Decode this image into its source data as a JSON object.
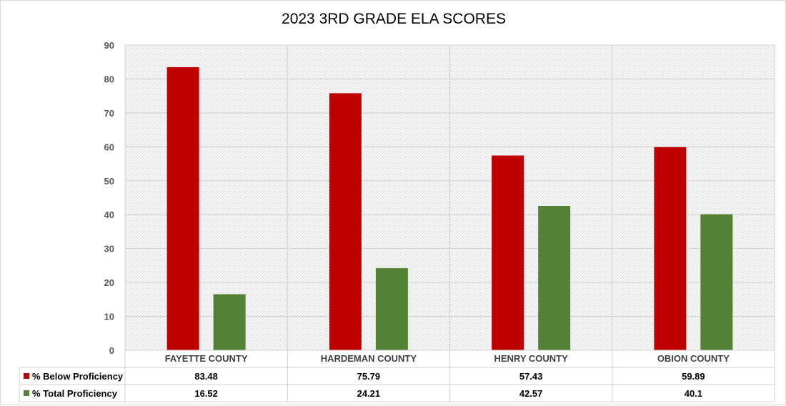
{
  "chart_data": {
    "type": "bar",
    "title": "2023 3RD GRADE ELA SCORES",
    "xlabel": "",
    "ylabel": "",
    "ylim": [
      0,
      90
    ],
    "yticks": [
      0,
      10,
      20,
      30,
      40,
      50,
      60,
      70,
      80,
      90
    ],
    "grid": true,
    "legend": "data-table",
    "categories": [
      "FAYETTE COUNTY",
      "HARDEMAN COUNTY",
      "HENRY COUNTY",
      "OBION COUNTY"
    ],
    "series": [
      {
        "name": "% Below Proficiency",
        "color": "#C00000",
        "values": [
          83.48,
          75.79,
          57.43,
          59.89
        ],
        "labels": [
          "83.48",
          "75.79",
          "57.43",
          "59.89"
        ]
      },
      {
        "name": "% Total Proficiency",
        "color": "#538135",
        "values": [
          16.52,
          24.21,
          42.57,
          40.1
        ],
        "labels": [
          "16.52",
          "24.21",
          "42.57",
          "40.1"
        ]
      }
    ]
  }
}
